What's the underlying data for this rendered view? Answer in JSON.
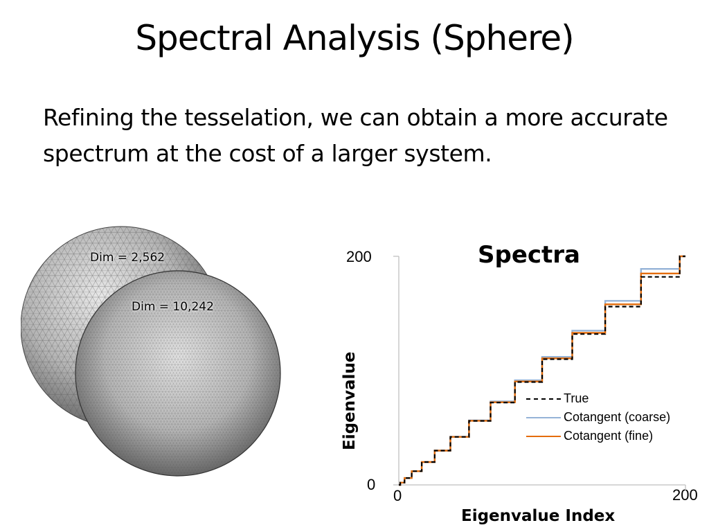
{
  "slide": {
    "title": "Spectral Analysis (Sphere)",
    "body": "Refining the tesselation, we can obtain a more accurate spectrum at the cost of a larger system."
  },
  "spheres": {
    "coarse_label": "Dim = 2,562",
    "fine_label": "Dim = 10,242"
  },
  "chart_data": {
    "type": "line",
    "title": "Spectra",
    "xlabel": "Eigenvalue Index",
    "ylabel": "Eigenvalue",
    "xlim": [
      0,
      200
    ],
    "ylim": [
      0,
      200
    ],
    "x_ticks": [
      "0",
      "200"
    ],
    "y_ticks": [
      "0",
      "200"
    ],
    "grid": false,
    "legend_position": "center-right",
    "series": [
      {
        "name": "True",
        "color": "#000000",
        "style": "dashed",
        "steps": [
          [
            0,
            0
          ],
          [
            1,
            2
          ],
          [
            4,
            6
          ],
          [
            9,
            12
          ],
          [
            16,
            20
          ],
          [
            25,
            30
          ],
          [
            36,
            42
          ],
          [
            49,
            56
          ],
          [
            64,
            72
          ],
          [
            81,
            90
          ],
          [
            100,
            110
          ],
          [
            121,
            132
          ],
          [
            144,
            156
          ],
          [
            169,
            182
          ],
          [
            196,
            210
          ]
        ]
      },
      {
        "name": "Cotangent (coarse)",
        "color": "#95b3d7",
        "style": "solid",
        "steps": [
          [
            0,
            0
          ],
          [
            1,
            2
          ],
          [
            4,
            6
          ],
          [
            9,
            12
          ],
          [
            16,
            20
          ],
          [
            25,
            30
          ],
          [
            36,
            42.2
          ],
          [
            49,
            56.5
          ],
          [
            64,
            73
          ],
          [
            81,
            91.5
          ],
          [
            100,
            112
          ],
          [
            121,
            135
          ],
          [
            144,
            161
          ],
          [
            169,
            189
          ],
          [
            196,
            218
          ]
        ]
      },
      {
        "name": "Cotangent (fine)",
        "color": "#e46c0a",
        "style": "solid",
        "steps": [
          [
            0,
            0
          ],
          [
            1,
            2
          ],
          [
            4,
            6
          ],
          [
            9,
            12
          ],
          [
            16,
            20
          ],
          [
            25,
            30
          ],
          [
            36,
            42
          ],
          [
            49,
            56.1
          ],
          [
            64,
            72.3
          ],
          [
            81,
            90.5
          ],
          [
            100,
            110.7
          ],
          [
            121,
            133
          ],
          [
            144,
            158
          ],
          [
            169,
            185
          ],
          [
            196,
            213
          ]
        ]
      }
    ]
  }
}
